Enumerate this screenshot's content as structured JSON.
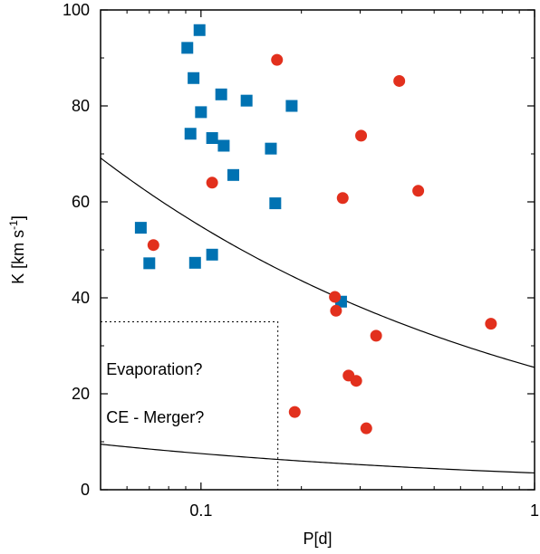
{
  "chart_data": {
    "type": "scatter",
    "title": "",
    "xlabel": "P[d]",
    "ylabel_main": "K [km s",
    "ylabel_sup": "-1",
    "ylabel_close": "]",
    "xscale": "log",
    "xlim": [
      0.05,
      1
    ],
    "ylim": [
      0,
      100
    ],
    "xticks": [
      {
        "value": 0.1,
        "label": "0.1"
      },
      {
        "value": 1,
        "label": "1"
      }
    ],
    "yticks": [
      {
        "value": 0,
        "label": "0"
      },
      {
        "value": 20,
        "label": "20"
      },
      {
        "value": 40,
        "label": "40"
      },
      {
        "value": 60,
        "label": "60"
      },
      {
        "value": 80,
        "label": "80"
      },
      {
        "value": 100,
        "label": "100"
      }
    ],
    "series": [
      {
        "marker": "square",
        "color": "#0072b2",
        "points": [
          [
            0.099,
            95.8
          ],
          [
            0.091,
            92.1
          ],
          [
            0.095,
            85.8
          ],
          [
            0.115,
            82.4
          ],
          [
            0.137,
            81.1
          ],
          [
            0.187,
            80.0
          ],
          [
            0.1,
            78.7
          ],
          [
            0.093,
            74.2
          ],
          [
            0.108,
            73.3
          ],
          [
            0.117,
            71.7
          ],
          [
            0.162,
            71.1
          ],
          [
            0.125,
            65.6
          ],
          [
            0.167,
            59.7
          ],
          [
            0.066,
            54.6
          ],
          [
            0.07,
            47.2
          ],
          [
            0.096,
            47.3
          ],
          [
            0.108,
            49.0
          ],
          [
            0.263,
            39.2
          ]
        ]
      },
      {
        "marker": "circle",
        "color": "#e2301d",
        "points": [
          [
            0.169,
            89.6
          ],
          [
            0.393,
            85.2
          ],
          [
            0.302,
            73.8
          ],
          [
            0.108,
            64.0
          ],
          [
            0.266,
            60.8
          ],
          [
            0.448,
            62.3
          ],
          [
            0.072,
            51.0
          ],
          [
            0.252,
            40.2
          ],
          [
            0.254,
            37.3
          ],
          [
            0.335,
            32.1
          ],
          [
            0.74,
            34.6
          ],
          [
            0.277,
            23.8
          ],
          [
            0.292,
            22.7
          ],
          [
            0.191,
            16.2
          ],
          [
            0.313,
            12.8
          ]
        ]
      }
    ],
    "curves": [
      {
        "name": "upper",
        "a": 25.5,
        "exponent": -0.333
      },
      {
        "name": "lower",
        "a": 3.5,
        "exponent": -0.333
      }
    ],
    "dotted_region": {
      "xmax": 0.17,
      "ymax": 35
    },
    "annotations": [
      {
        "text": "Evaporation?",
        "x": 0.052,
        "y": 24
      },
      {
        "text": "CE - Merger?",
        "x": 0.052,
        "y": 14
      }
    ],
    "grid": false,
    "legend": "none"
  }
}
